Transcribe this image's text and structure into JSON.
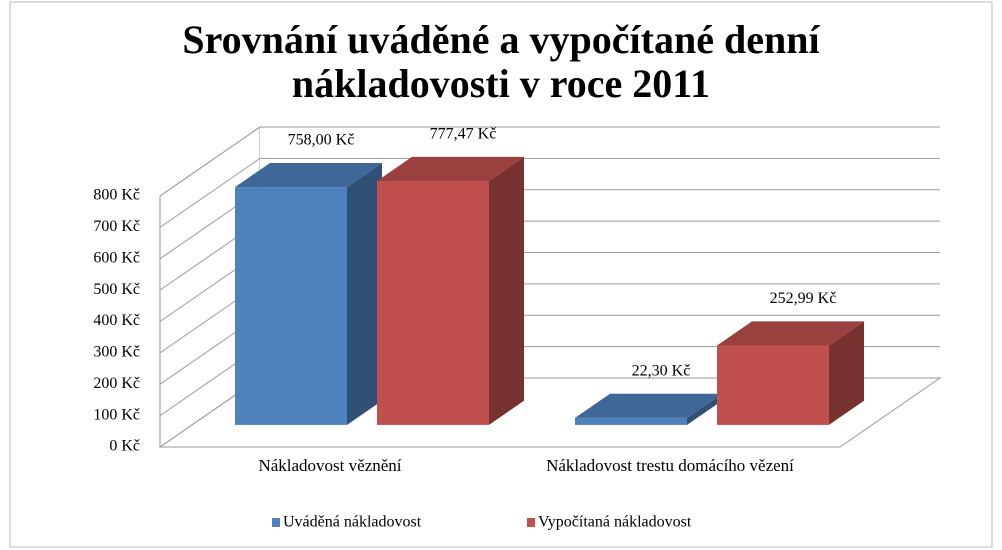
{
  "chart_data": {
    "type": "bar3d",
    "title": "Srovnání uváděné a vypočítané denní nákladovosti v roce 2011",
    "categories": [
      "Nákladovost věznění",
      "Nákladovost trestu domácího vězení"
    ],
    "series": [
      {
        "name": "Uváděná nákladovost",
        "color": "#4f81bd",
        "values": [
          758,
          22.3
        ],
        "value_labels": [
          "758,00 Kč",
          "22,30 Kč"
        ]
      },
      {
        "name": "Vypočítaná nákladovost",
        "color": "#c0504d",
        "values": [
          777.47,
          252.99
        ],
        "value_labels": [
          "777,47 Kč",
          "252,99 Kč"
        ]
      }
    ],
    "ylim": [
      0,
      800
    ],
    "yticks": [
      {
        "value": 0,
        "label": "0 Kč"
      },
      {
        "value": 100,
        "label": "100 Kč"
      },
      {
        "value": 200,
        "label": "200 Kč"
      },
      {
        "value": 300,
        "label": "300 Kč"
      },
      {
        "value": 400,
        "label": "400 Kč"
      },
      {
        "value": 500,
        "label": "500 Kč"
      },
      {
        "value": 600,
        "label": "600 Kč"
      },
      {
        "value": 700,
        "label": "700 Kč"
      },
      {
        "value": 800,
        "label": "800 Kč"
      }
    ],
    "grid": true,
    "legend": "bottom"
  }
}
